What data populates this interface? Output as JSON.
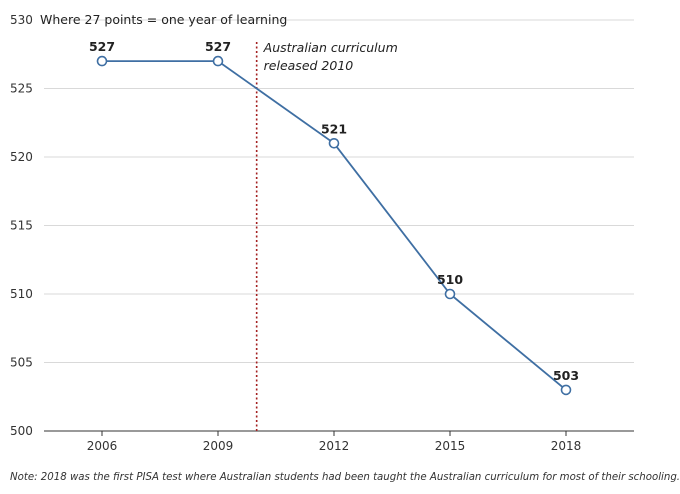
{
  "chart_data": {
    "type": "line",
    "ylabel": "Where 27 points = one year of learning",
    "x": [
      "2006",
      "2009",
      "2012",
      "2015",
      "2018"
    ],
    "series": [
      {
        "values": [
          527,
          527,
          521,
          510,
          503
        ]
      }
    ],
    "data_labels": [
      "527",
      "527",
      "521",
      "510",
      "503"
    ],
    "ylim": [
      500,
      530
    ],
    "yticks": [
      500,
      505,
      510,
      515,
      520,
      525,
      530
    ],
    "grid": true,
    "line_color": "#3f6fa3",
    "marker_fill": "#ffffff",
    "annotation": {
      "x": 2010,
      "lines": [
        "Australian curriculum",
        "released 2010"
      ],
      "color": "#a32020"
    }
  },
  "note": "Note: 2018 was the first PISA test where Australian students had been taught the Australian curriculum for most of their schooling."
}
